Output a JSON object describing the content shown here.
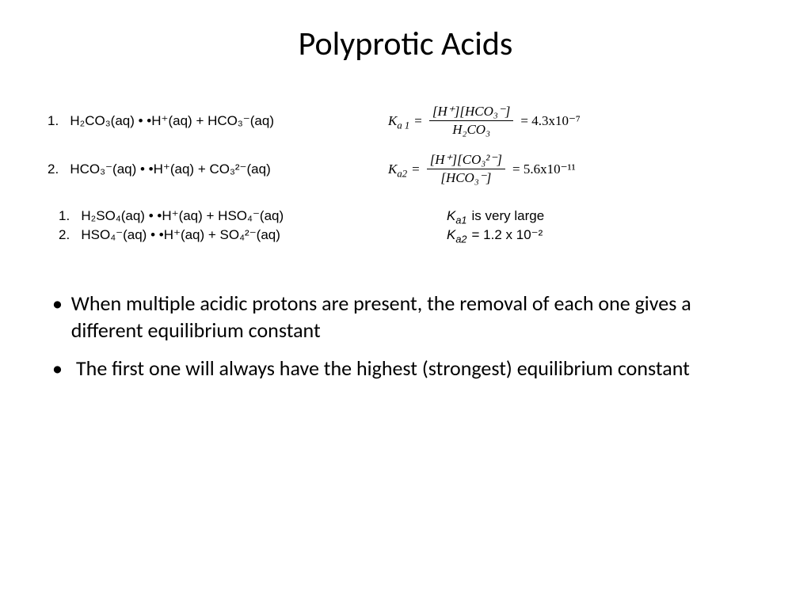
{
  "title": "Polyprotic Acids",
  "carbonic": {
    "eq1": {
      "num": "1.",
      "lhs": "H₂CO₃(aq) • •H⁺(aq)  +  HCO₃⁻(aq)",
      "K_label": "K",
      "K_sub": "a 1",
      "numerator": "[H⁺][HCO₃⁻]",
      "denominator": "H₂CO₃",
      "value": "= 4.3x10⁻⁷"
    },
    "eq2": {
      "num": "2.",
      "lhs": "HCO₃⁻(aq) • •H⁺(aq)  +  CO₃²⁻(aq)",
      "K_label": "K",
      "K_sub": "a2",
      "numerator": "[H⁺][CO₃²⁻]",
      "denominator": "[HCO₃⁻]",
      "value": "= 5.6x10⁻¹¹"
    }
  },
  "sulfuric": {
    "eq1": {
      "num": "1.",
      "lhs": "H₂SO₄(aq) • •H⁺(aq)  +  HSO₄⁻(aq)",
      "K_label_html": "<span class='i'>K<sub>a1</sub></span> is very large"
    },
    "eq2": {
      "num": "2.",
      "lhs": "HSO₄⁻(aq) • •H⁺(aq)  +  SO₄²⁻(aq)",
      "K_label_html": "<span class='i'>K<sub>a2</sub></span> = 1.2 x 10⁻²"
    }
  },
  "bullets": [
    "When multiple acidic protons are present, the removal of each one gives a different equilibrium constant",
    "The first one will always have the highest (strongest) equilibrium constant"
  ]
}
